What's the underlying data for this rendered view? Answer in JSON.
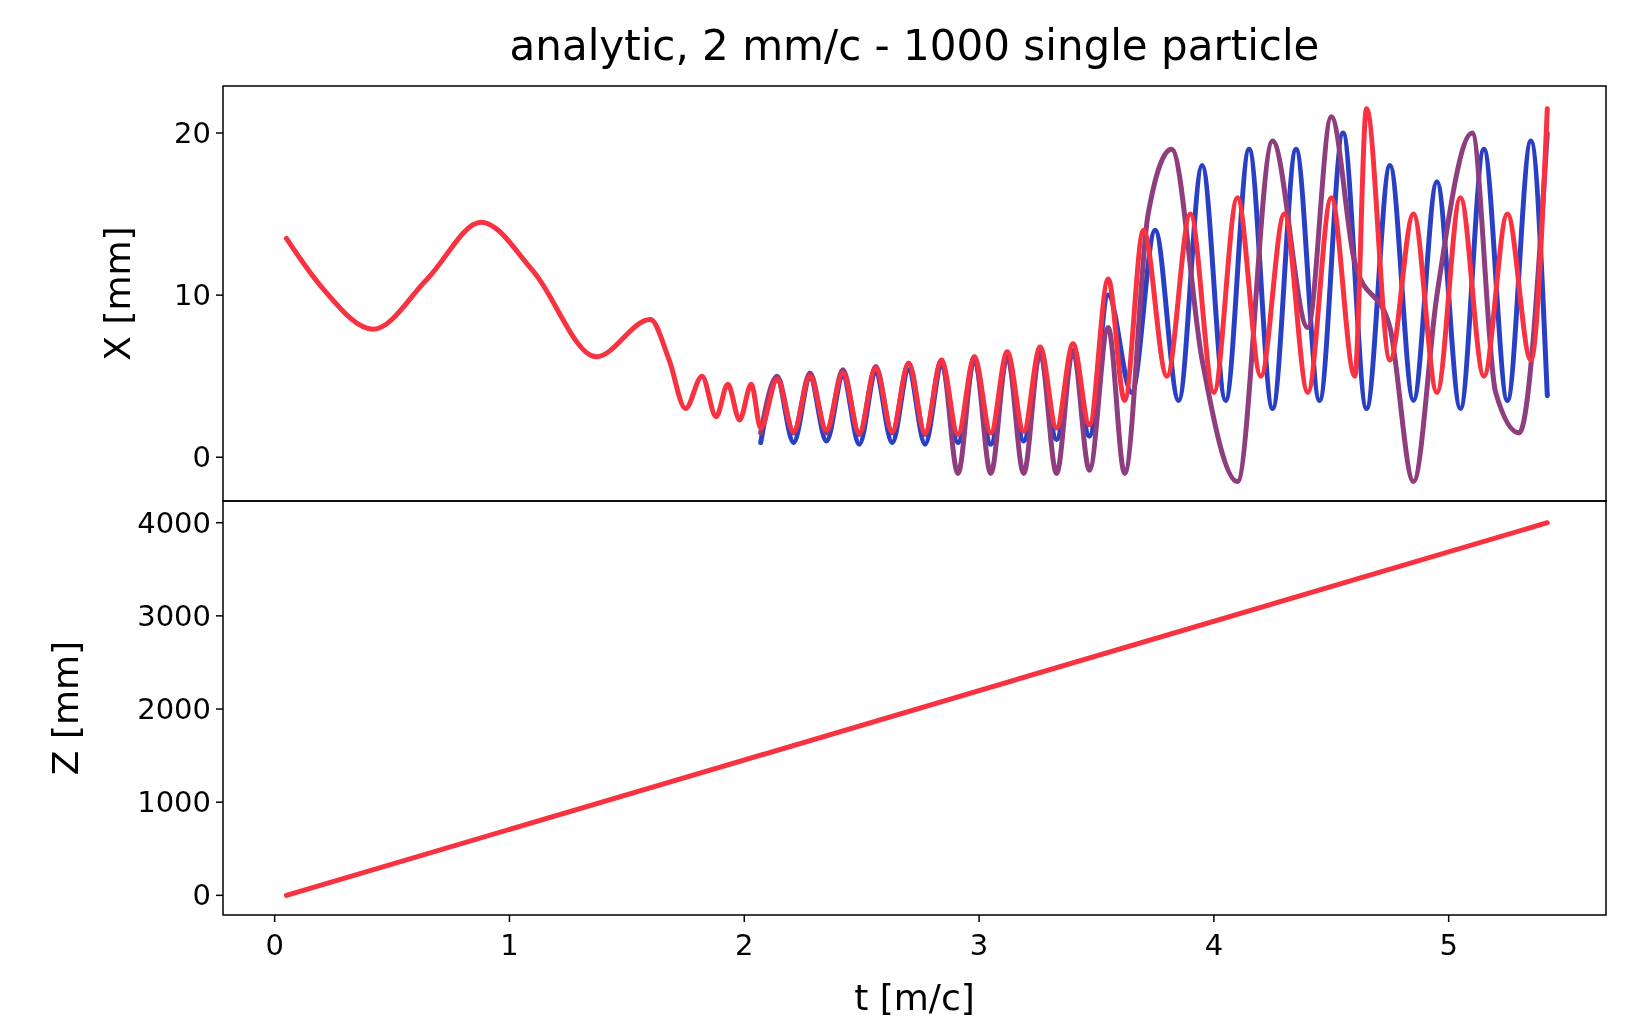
{
  "chart_data": [
    {
      "type": "line",
      "title": "analytic, 2 mm/c - 1000 single particle",
      "ylabel": "X [mm]",
      "xlim": [
        -0.22,
        5.67
      ],
      "ylim": [
        -2.7,
        22.9
      ],
      "yticks": [
        0,
        10,
        20
      ],
      "tick_labels": "y",
      "grid": false,
      "line_style": "solid",
      "series": [
        {
          "color": "#2a40c4",
          "x": [
            2.07,
            2.14,
            2.21,
            2.28,
            2.35,
            2.42,
            2.49,
            2.56,
            2.63,
            2.7,
            2.77,
            2.84,
            2.91,
            2.98,
            3.05,
            3.12,
            3.19,
            3.26,
            3.33,
            3.4,
            3.47,
            3.55,
            3.65,
            3.75,
            3.85,
            3.95,
            4.05,
            4.15,
            4.25,
            4.35,
            4.45,
            4.55,
            4.65,
            4.75,
            4.85,
            4.95,
            5.05,
            5.15,
            5.25,
            5.35,
            5.42
          ],
          "values": [
            0.9,
            4.8,
            0.9,
            4.9,
            1,
            5,
            0.8,
            5.2,
            0.9,
            5.4,
            0.8,
            5.6,
            0.9,
            5.8,
            0.8,
            6,
            1,
            6.2,
            1.1,
            6.5,
            1.3,
            10,
            4,
            14,
            3.5,
            18,
            3.5,
            19,
            3,
            19,
            3.5,
            20,
            3,
            18,
            3.5,
            17,
            3,
            19,
            3.5,
            19.5,
            3.8
          ]
        },
        {
          "color": "#8e3d7e",
          "x": [
            2.07,
            2.14,
            2.21,
            2.28,
            2.35,
            2.42,
            2.49,
            2.56,
            2.63,
            2.7,
            2.77,
            2.84,
            2.91,
            2.98,
            3.05,
            3.12,
            3.19,
            3.26,
            3.33,
            3.4,
            3.47,
            3.55,
            3.62,
            3.72,
            3.82,
            3.95,
            4.1,
            4.25,
            4.4,
            4.5,
            4.6,
            4.75,
            4.85,
            4.95,
            5.1,
            5.2,
            5.3,
            5.42
          ],
          "values": [
            1.5,
            5,
            1.5,
            5.2,
            1.5,
            5.4,
            1.4,
            5.6,
            1.5,
            5.8,
            1.4,
            6,
            -1,
            6.2,
            -1,
            6.3,
            -1,
            6.5,
            -1,
            6.6,
            -0.8,
            8,
            -1,
            15,
            19,
            6,
            -1.5,
            19.5,
            8,
            21,
            12,
            8,
            -1.5,
            10,
            20,
            4,
            1.5,
            20
          ]
        },
        {
          "color": "#f83240",
          "x": [
            0.05,
            0.2,
            0.42,
            0.65,
            0.88,
            1.1,
            1.37,
            1.6,
            1.68,
            1.75,
            1.82,
            1.88,
            1.93,
            1.98,
            2.03,
            2.07,
            2.14,
            2.21,
            2.28,
            2.35,
            2.42,
            2.49,
            2.56,
            2.63,
            2.7,
            2.77,
            2.84,
            2.91,
            2.98,
            3.05,
            3.12,
            3.19,
            3.26,
            3.33,
            3.4,
            3.47,
            3.55,
            3.62,
            3.7,
            3.8,
            3.9,
            4,
            4.1,
            4.2,
            4.3,
            4.4,
            4.5,
            4.6,
            4.65,
            4.75,
            4.85,
            4.95,
            5.05,
            5.15,
            5.25,
            5.35,
            5.42
          ],
          "values": [
            13.5,
            10.5,
            7.9,
            11,
            14.5,
            11.5,
            6.2,
            8.5,
            6,
            3,
            5,
            2.5,
            4.5,
            2.3,
            4.5,
            1.8,
            4.8,
            1.6,
            5,
            1.7,
            5.2,
            1.5,
            5.5,
            1.6,
            5.8,
            1.5,
            6,
            1.4,
            6.2,
            1.5,
            6.5,
            1.6,
            6.8,
            1.8,
            7,
            2,
            11,
            3.5,
            14,
            5,
            15,
            4,
            16,
            5,
            15,
            4,
            16,
            5,
            21.5,
            6,
            15,
            4,
            16,
            5,
            15,
            6,
            21.5
          ]
        }
      ]
    },
    {
      "type": "line",
      "xlabel": "t [m/c]",
      "ylabel": "Z [mm]",
      "xlim": [
        -0.22,
        5.67
      ],
      "xticks": [
        0,
        1,
        2,
        3,
        4,
        5
      ],
      "ylim": [
        -211,
        4233
      ],
      "yticks": [
        0,
        1000,
        2000,
        3000,
        4000
      ],
      "grid": false,
      "line_style": "solid",
      "series": [
        {
          "color": "#f83240",
          "x": [
            0.05,
            5.42
          ],
          "values": [
            0,
            4000
          ]
        }
      ]
    }
  ]
}
